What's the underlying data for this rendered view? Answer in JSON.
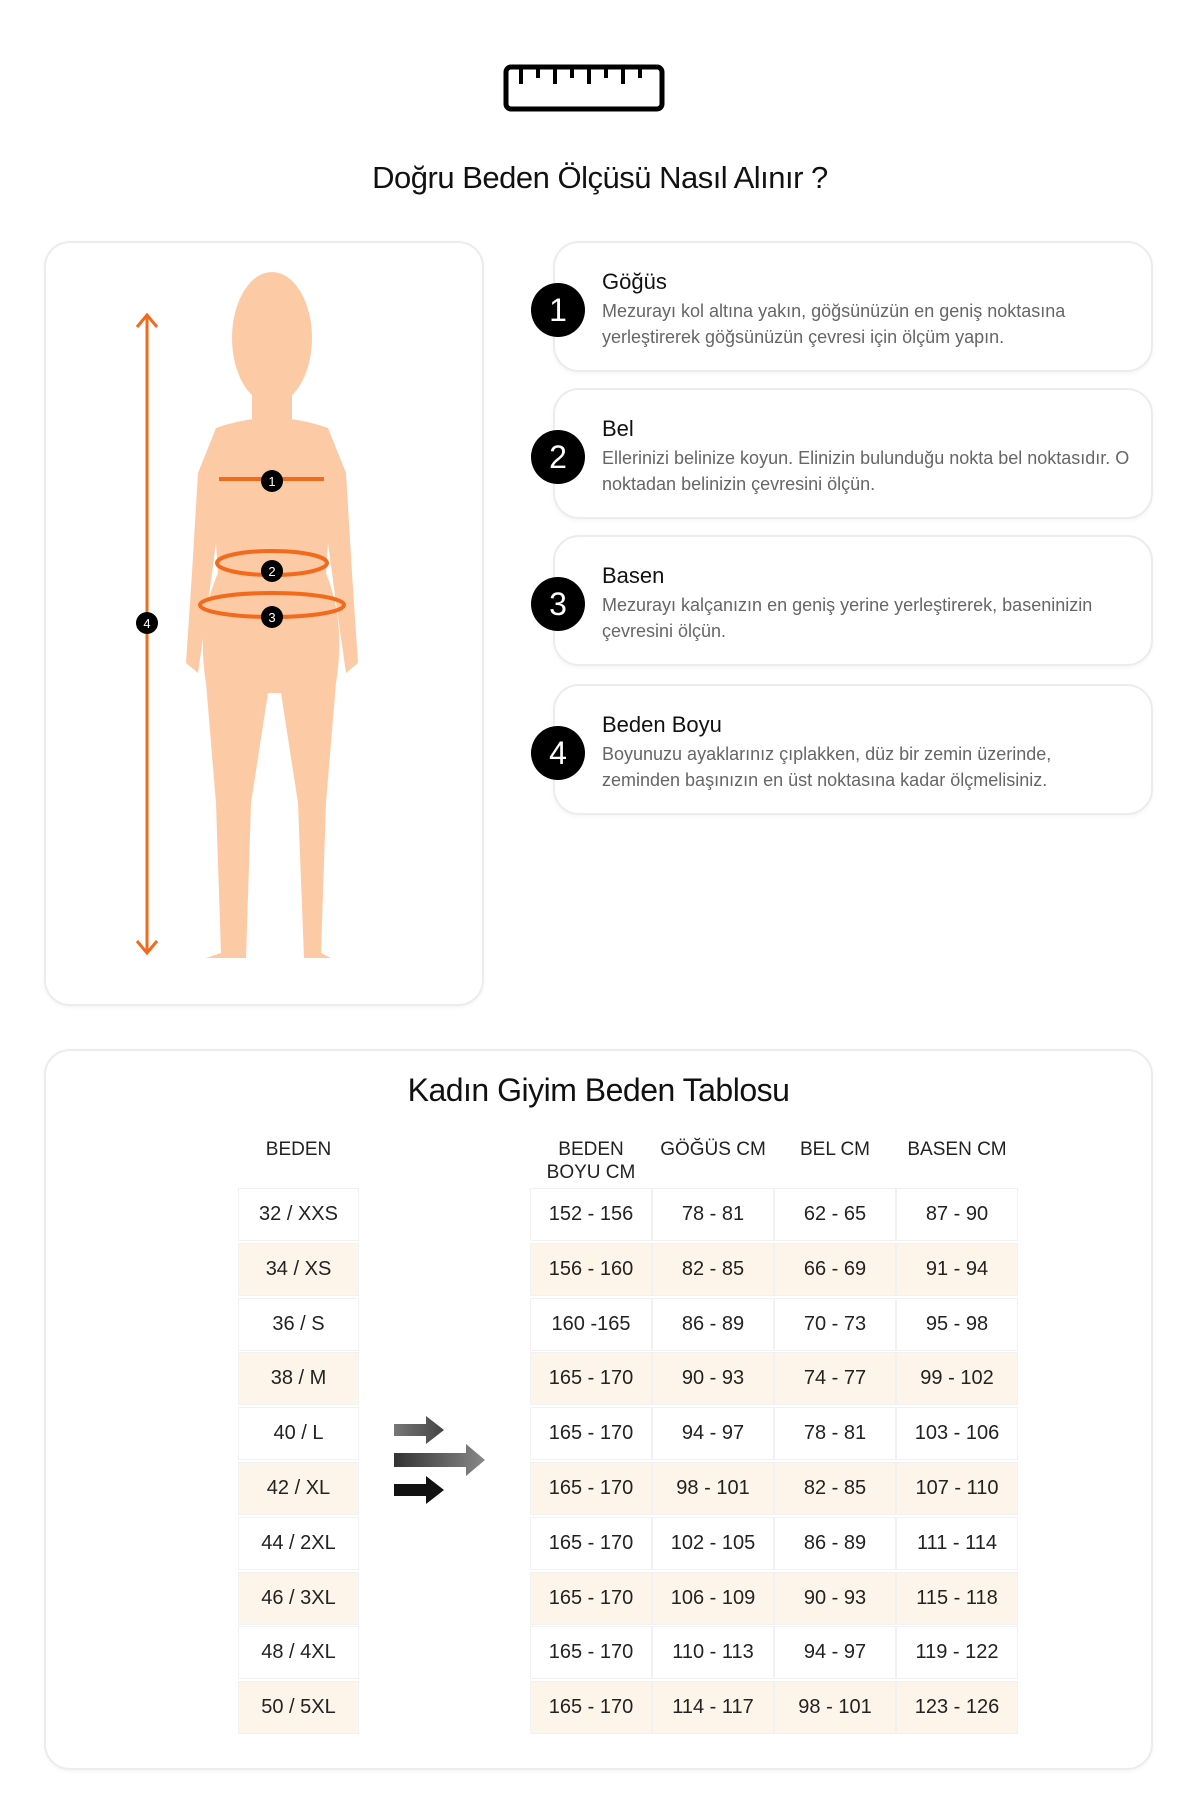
{
  "header": {
    "icon": "ruler-icon",
    "title": "Doğru Beden Ölçüsü Nasıl Alınır ?"
  },
  "colors": {
    "accent": "#f26b1d",
    "skin": "#fdcaa6",
    "row_shade": "#fdf5ea"
  },
  "figure": {
    "markers": [
      "1",
      "2",
      "3",
      "4"
    ]
  },
  "steps": [
    {
      "num": "1",
      "title": "Göğüs",
      "text": "Mezurayı kol altına yakın, göğsünüzün en geniş noktasına yerleştirerek göğsünüzün çevresi için ölçüm yapın."
    },
    {
      "num": "2",
      "title": "Bel",
      "text": "Ellerinizi belinize koyun. Elinizin bulunduğu nokta bel noktasıdır. O noktadan belinizin çevresini ölçün."
    },
    {
      "num": "3",
      "title": "Basen",
      "text": "Mezurayı kalçanızın en geniş yerine yerleştirerek, baseninizin çevresini ölçün."
    },
    {
      "num": "4",
      "title": "Beden Boyu",
      "text": "Boyunuzu ayaklarınız çıplakken, düz bir zemin üzerinde, zeminden başınızın en üst noktasına kadar ölçmelisiniz."
    }
  ],
  "table": {
    "title": "Kadın Giyim Beden Tablosu",
    "headers": [
      "BEDEN",
      "BEDEN BOYU CM",
      "GÖĞÜS CM",
      "BEL CM",
      "BASEN CM"
    ],
    "rows": [
      [
        "32 / XXS",
        "152 - 156",
        "78 - 81",
        "62 - 65",
        "87 - 90"
      ],
      [
        "34 / XS",
        "156 - 160",
        "82 - 85",
        "66 - 69",
        "91 - 94"
      ],
      [
        "36 / S",
        "160 -165",
        "86 - 89",
        "70 - 73",
        "95 - 98"
      ],
      [
        "38 / M",
        "165 - 170",
        "90 - 93",
        "74 - 77",
        "99 - 102"
      ],
      [
        "40 / L",
        "165 - 170",
        "94 - 97",
        "78 - 81",
        "103 - 106"
      ],
      [
        "42 / XL",
        "165 - 170",
        "98 - 101",
        "82 - 85",
        "107 - 110"
      ],
      [
        "44 / 2XL",
        "165 - 170",
        "102 - 105",
        "86 - 89",
        "111 - 114"
      ],
      [
        "46 / 3XL",
        "165 - 170",
        "106 - 109",
        "90 - 93",
        "115 - 118"
      ],
      [
        "48 / 4XL",
        "165 - 170",
        "110 - 113",
        "94 - 97",
        "119 - 122"
      ],
      [
        "50 / 5XL",
        "165 - 170",
        "114 - 117",
        "98 - 101",
        "123 - 126"
      ]
    ]
  }
}
